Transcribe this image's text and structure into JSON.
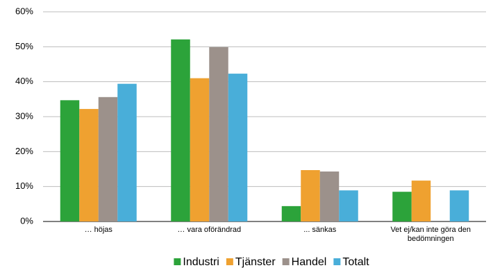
{
  "chart_data": {
    "type": "bar",
    "categories": [
      "… höjas",
      "… vara oförändrad",
      "... sänkas",
      "Vet ej/kan inte göra den bedömningen"
    ],
    "series": [
      {
        "name": "Industri",
        "color": "#2ca33a",
        "values": [
          34.7,
          52.1,
          4.4,
          8.5
        ]
      },
      {
        "name": "Tjänster",
        "color": "#efa130",
        "values": [
          32.2,
          41.0,
          14.7,
          11.7
        ]
      },
      {
        "name": "Handel",
        "color": "#9c918b",
        "values": [
          35.6,
          49.9,
          14.3,
          null
        ]
      },
      {
        "name": "Totalt",
        "color": "#49aed9",
        "values": [
          39.4,
          42.3,
          8.9,
          8.9
        ]
      }
    ],
    "ylim": [
      0,
      60
    ],
    "yticks": [
      {
        "value": 0,
        "label": "0%"
      },
      {
        "value": 10,
        "label": "10%"
      },
      {
        "value": 20,
        "label": "20%"
      },
      {
        "value": 30,
        "label": "30%"
      },
      {
        "value": 40,
        "label": "40%"
      },
      {
        "value": 50,
        "label": "50%"
      },
      {
        "value": 60,
        "label": "60%"
      }
    ],
    "grid": true,
    "legend": "bottom"
  }
}
